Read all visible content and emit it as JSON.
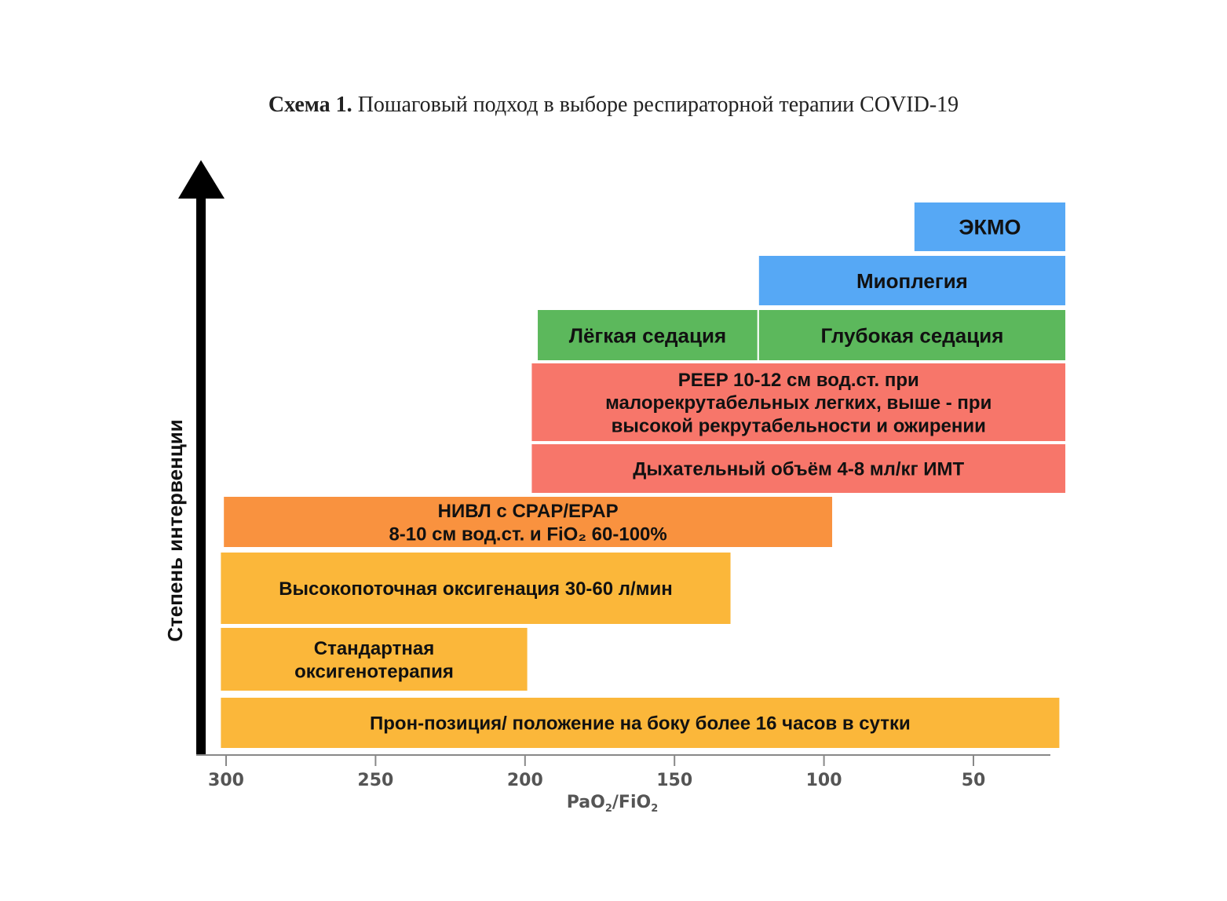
{
  "caption": {
    "bold": "Схема 1.",
    "text": " Пошаговый подход в выборе респираторной терапии COVID-19"
  },
  "colors": {
    "blue": "#56a8f5",
    "green": "#5cb85c",
    "red": "#f7766a",
    "orange_dark": "#f9923f",
    "orange": "#fbb73a"
  },
  "chart_data": {
    "type": "bar",
    "orientation": "horizontal-range",
    "ylabel": "Степень интервенции",
    "xlabel_parts": [
      "PaO",
      "2",
      "/FiO",
      "2"
    ],
    "x_ticks": [
      300,
      250,
      200,
      150,
      100,
      50
    ],
    "x_range": [
      302,
      26
    ],
    "bars": [
      {
        "lines": [
          "ЭКМО"
        ],
        "from": 70,
        "to": 19,
        "color": "blue"
      },
      {
        "lines": [
          "Миоплегия"
        ],
        "from": 122,
        "to": 19,
        "color": "blue"
      },
      {
        "lines": [
          "Лёгкая седация"
        ],
        "from": 196,
        "to": 122,
        "color": "green"
      },
      {
        "lines": [
          "Глубокая седация"
        ],
        "from": 122,
        "to": 19,
        "color": "green"
      },
      {
        "lines": [
          "PEEP 10-12 см вод.ст. при",
          "малорекрутабельных легких, выше - при",
          "высокой рекрутабельности и ожирении"
        ],
        "from": 198,
        "to": 19,
        "color": "red"
      },
      {
        "lines": [
          "Дыхательный объём 4-8 мл/кг ИМТ"
        ],
        "from": 198,
        "to": 19,
        "color": "red"
      },
      {
        "lines": [
          "НИВЛ с CPAP/EPAP",
          "8-10 см вод.ст. и FiO₂ 60-100%"
        ],
        "from": 301,
        "to": 97,
        "color": "orange_dark"
      },
      {
        "lines": [
          "Высокопоточная оксигенация 30-60 л/мин"
        ],
        "from": 302,
        "to": 131,
        "color": "orange"
      },
      {
        "lines": [
          "Стандартная",
          "оксигенотерапия"
        ],
        "from": 302,
        "to": 199,
        "color": "orange"
      },
      {
        "lines": [
          "Прон-позиция/ положение на боку более 16 часов в сутки"
        ],
        "from": 302,
        "to": 21,
        "color": "orange"
      }
    ]
  }
}
